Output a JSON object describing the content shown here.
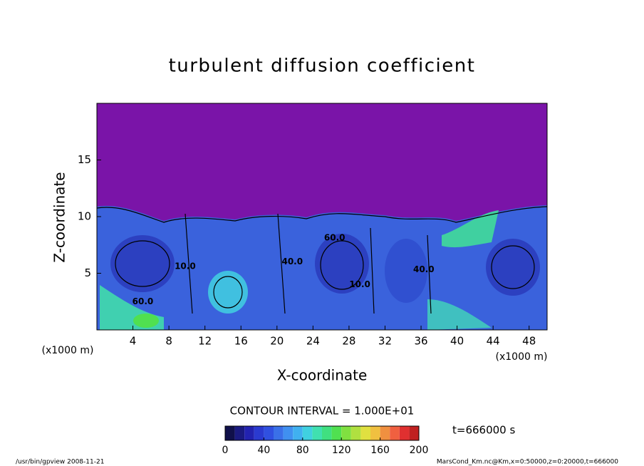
{
  "chart_data": {
    "type": "contour",
    "title": "turbulent diffusion coefficient",
    "x_label": "X-coordinate",
    "y_label": "Z-coordinate",
    "x_unit": "(x1000 m)",
    "y_unit": "(x1000 m)",
    "xlim": [
      0,
      50
    ],
    "ylim": [
      0,
      20
    ],
    "xticks": [
      4,
      8,
      12,
      16,
      20,
      24,
      28,
      32,
      36,
      40,
      44,
      48
    ],
    "yticks": [
      5,
      10,
      15
    ],
    "contour_interval": "CONTOUR INTERVAL = 1.000E+01",
    "time": "t=666000 s",
    "contour_labels": [
      {
        "x": 5.1,
        "z": 2.5,
        "value": 60,
        "label": "60.0"
      },
      {
        "x": 9.8,
        "z": 5.6,
        "value": 10,
        "label": "10.0"
      },
      {
        "x": 21.7,
        "z": 6,
        "value": 40,
        "label": "40.0"
      },
      {
        "x": 26.4,
        "z": 8.1,
        "value": 60,
        "label": "60.0"
      },
      {
        "x": 29.2,
        "z": 4,
        "value": 10,
        "label": "10.0"
      },
      {
        "x": 36.3,
        "z": 5.3,
        "value": 40,
        "label": "40.0"
      }
    ],
    "colorbar": {
      "lim": [
        0,
        200
      ],
      "ticks": [
        0,
        40,
        80,
        120,
        160,
        200
      ],
      "colors": [
        "#10104a",
        "#1a1a80",
        "#2222b0",
        "#2a3ad0",
        "#3050e0",
        "#3a70e8",
        "#4090f0",
        "#40b0f0",
        "#40d0e0",
        "#40e0b0",
        "#40e080",
        "#50e050",
        "#80e040",
        "#b0e040",
        "#e0e040",
        "#f0c040",
        "#f09040",
        "#f06040",
        "#e03030",
        "#c02020"
      ]
    }
  },
  "footer": {
    "left": "/usr/bin/gpview   2008-11-21",
    "right": "MarsCond_Km.nc@Km,x=0:50000,z=0:20000,t=666000"
  }
}
